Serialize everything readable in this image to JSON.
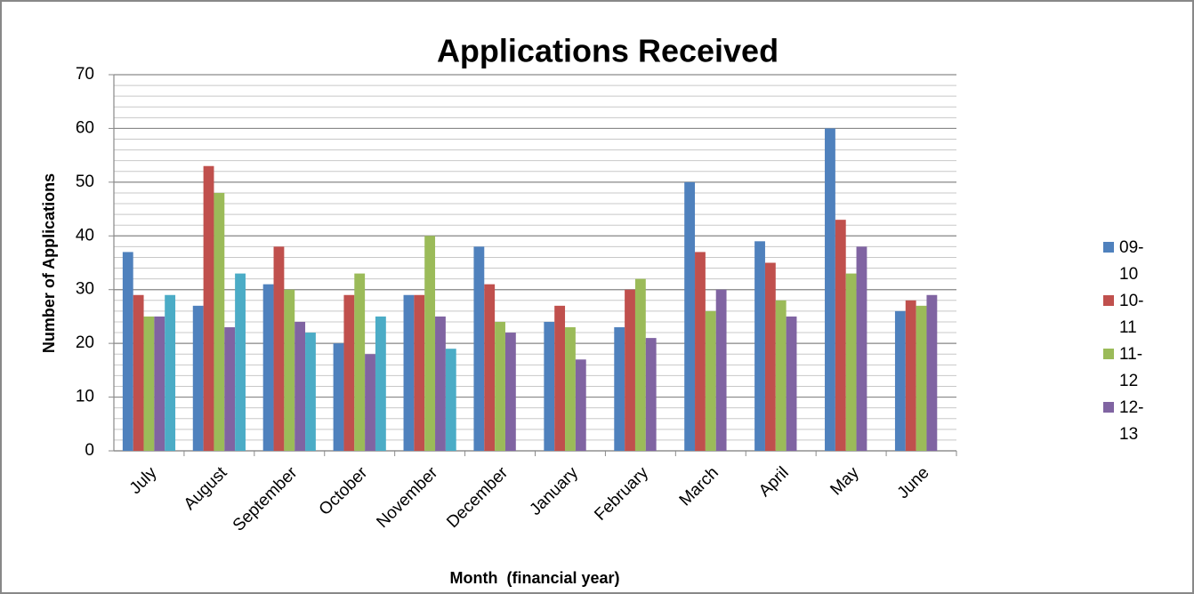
{
  "chart_data": {
    "type": "bar",
    "title": "Applications Received",
    "x_label": "Month  (financial year)",
    "y_label": "Number of Applications",
    "categories": [
      "July",
      "August",
      "September",
      "October",
      "November",
      "December",
      "January",
      "February",
      "March",
      "April",
      "May",
      "June"
    ],
    "series": [
      {
        "name": "09-10",
        "color": "#4f81bd",
        "values": [
          37,
          27,
          31,
          20,
          29,
          38,
          24,
          23,
          50,
          39,
          60,
          26
        ]
      },
      {
        "name": "10-11",
        "color": "#c0504d",
        "values": [
          29,
          53,
          38,
          29,
          29,
          31,
          27,
          30,
          37,
          35,
          43,
          28
        ]
      },
      {
        "name": "11-12",
        "color": "#9bbb59",
        "values": [
          25,
          48,
          30,
          33,
          40,
          24,
          23,
          32,
          26,
          28,
          33,
          27
        ]
      },
      {
        "name": "12-13",
        "color": "#8064a2",
        "values": [
          25,
          23,
          24,
          18,
          25,
          22,
          17,
          21,
          30,
          25,
          38,
          29
        ]
      },
      {
        "name": null,
        "color": "#4bacc6",
        "values": [
          29,
          33,
          22,
          25,
          19,
          null,
          null,
          null,
          null,
          null,
          null,
          null
        ]
      }
    ],
    "ylim": [
      0,
      70
    ],
    "yticks": [
      0,
      10,
      20,
      30,
      40,
      50,
      60,
      70
    ],
    "grid": true,
    "minor_grid_step": 2,
    "legend": "right"
  }
}
